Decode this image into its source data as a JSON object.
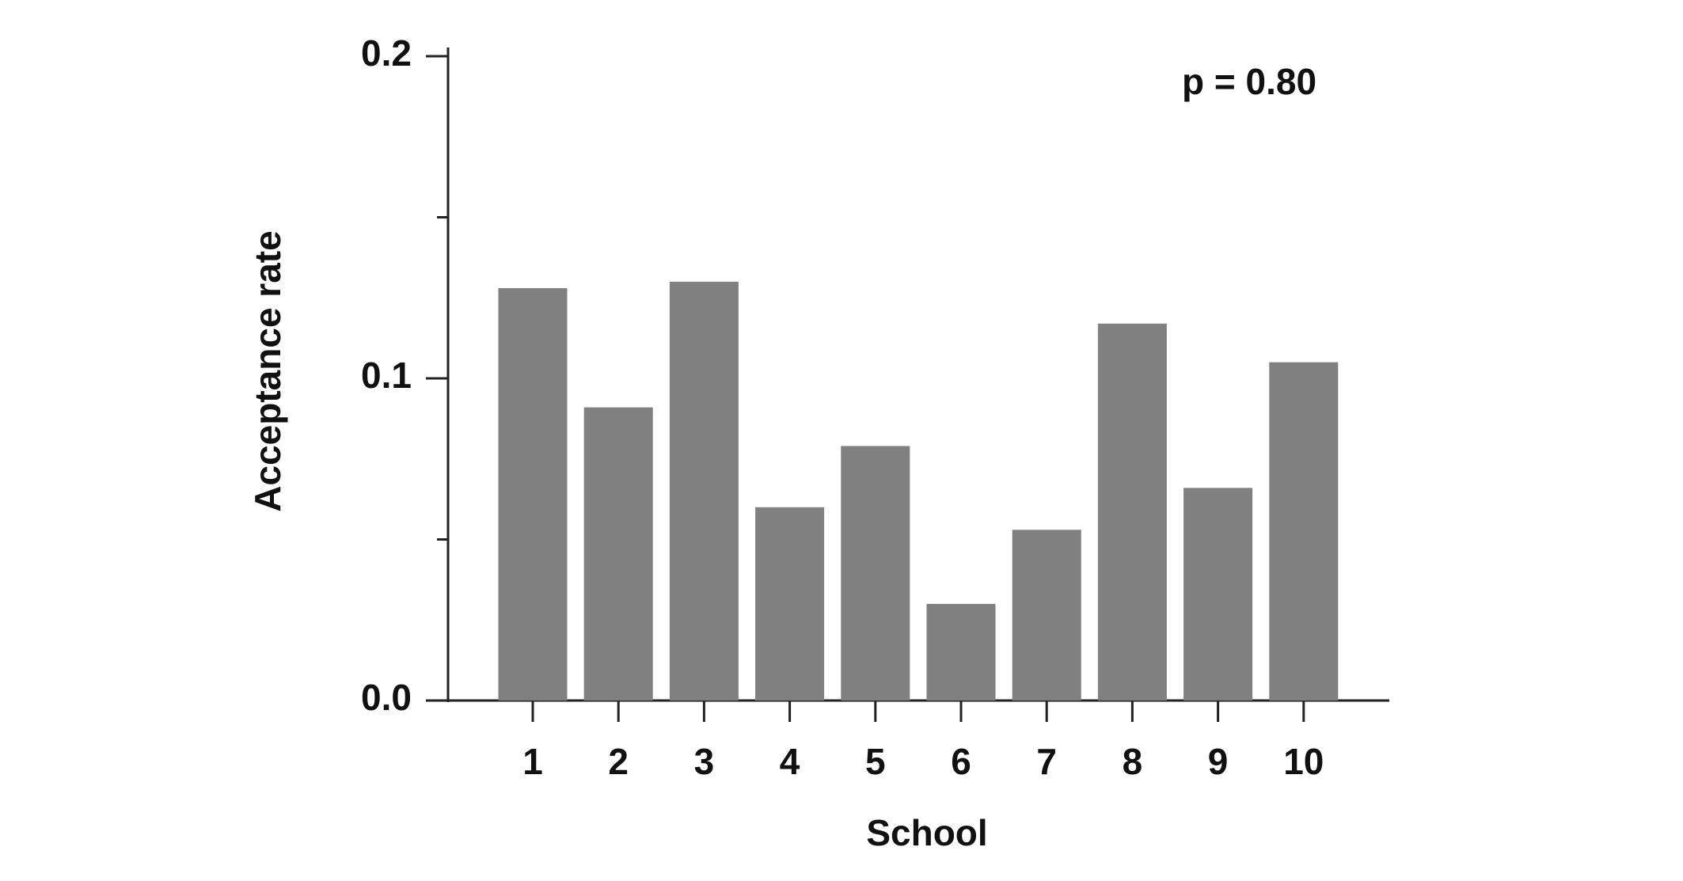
{
  "chart_data": {
    "type": "bar",
    "annotation": "p = 0.80",
    "x_label": "School",
    "y_label": "Acceptance rate",
    "categories": [
      "1",
      "2",
      "3",
      "4",
      "5",
      "6",
      "7",
      "8",
      "9",
      "10"
    ],
    "values": [
      0.128,
      0.091,
      0.13,
      0.06,
      0.079,
      0.03,
      0.053,
      0.117,
      0.066,
      0.105
    ],
    "color": "#808080",
    "ylim": [
      0,
      0.2
    ],
    "yticks": [
      {
        "value": 0,
        "label": "0.0"
      },
      0.1,
      0.2
    ],
    "yminor_ticks": [
      0.05,
      0.15
    ],
    "grid": false
  }
}
